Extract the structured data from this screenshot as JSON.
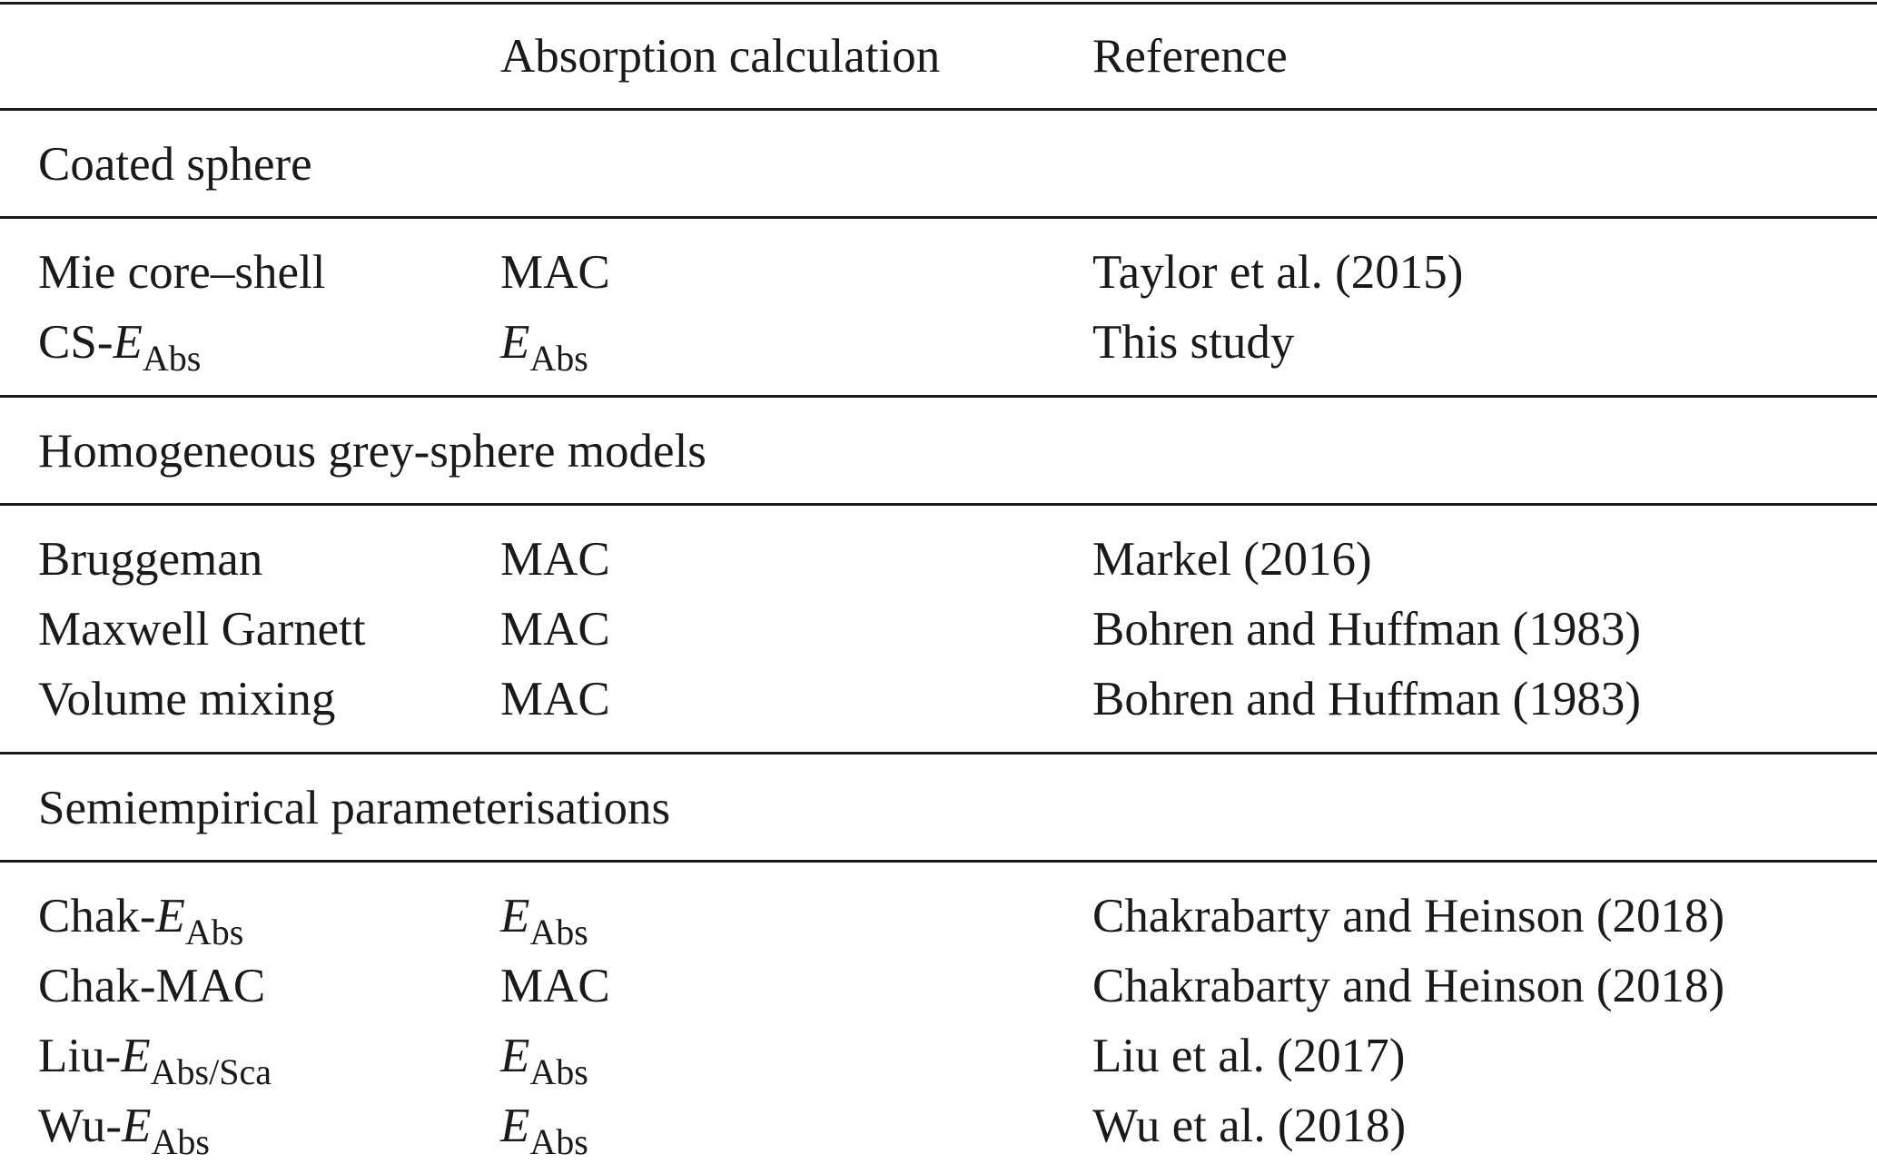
{
  "table": {
    "header": {
      "calc": "Absorption calculation",
      "ref": "Reference"
    },
    "sections": [
      {
        "title": "Coated sphere",
        "rows": [
          {
            "model": "Mie core–shell",
            "calc": "MAC",
            "ref": "Taylor et al. (2015)"
          },
          {
            "model": {
              "prefix": "CS-",
              "symbol": "E",
              "subscript": "Abs"
            },
            "calc": {
              "symbol": "E",
              "subscript": "Abs"
            },
            "ref": "This study"
          }
        ]
      },
      {
        "title": "Homogeneous grey-sphere models",
        "rows": [
          {
            "model": "Bruggeman",
            "calc": "MAC",
            "ref": "Markel (2016)"
          },
          {
            "model": "Maxwell Garnett",
            "calc": "MAC",
            "ref": "Bohren and Huffman (1983)"
          },
          {
            "model": "Volume mixing",
            "calc": "MAC",
            "ref": "Bohren and Huffman (1983)"
          }
        ]
      },
      {
        "title": "Semiempirical parameterisations",
        "rows": [
          {
            "model": {
              "prefix": "Chak-",
              "symbol": "E",
              "subscript": "Abs"
            },
            "calc": {
              "symbol": "E",
              "subscript": "Abs"
            },
            "ref": "Chakrabarty and Heinson (2018)"
          },
          {
            "model": "Chak-MAC",
            "calc": "MAC",
            "ref": "Chakrabarty and Heinson (2018)"
          },
          {
            "model": {
              "prefix": "Liu-",
              "symbol": "E",
              "subscript": "Abs/Sca"
            },
            "calc": {
              "symbol": "E",
              "subscript": "Abs"
            },
            "ref": "Liu et al. (2017)"
          },
          {
            "model": {
              "prefix": "Wu-",
              "symbol": "E",
              "subscript": "Abs"
            },
            "calc": {
              "symbol": "E",
              "subscript": "Abs"
            },
            "ref": "Wu et al. (2018)"
          }
        ]
      }
    ]
  }
}
